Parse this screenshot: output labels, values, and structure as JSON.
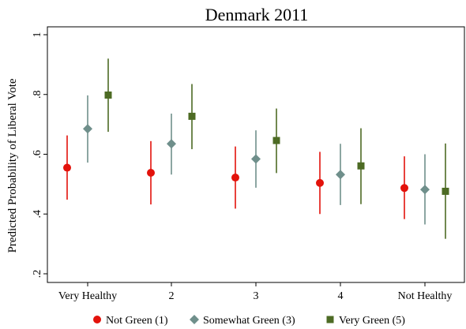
{
  "chart_data": {
    "type": "scatter",
    "title": "Denmark 2011",
    "xlabel": "",
    "ylabel": "Predicted Probability of Liberal Vote",
    "categories": [
      "Very Healthy",
      "2",
      "3",
      "4",
      "Not Healthy"
    ],
    "ylim": [
      0.2,
      1.0
    ],
    "yticks": [
      0.2,
      0.4,
      0.6,
      0.8,
      1.0
    ],
    "ytick_labels": [
      ".2",
      ".4",
      ".6",
      ".8",
      "1"
    ],
    "grid": false,
    "legend_position": "bottom",
    "series": [
      {
        "name": "Not Green (1)",
        "marker": "circle",
        "color": "#e3120b",
        "values": [
          0.555,
          0.538,
          0.522,
          0.504,
          0.487
        ],
        "ci_low": [
          0.448,
          0.432,
          0.418,
          0.4,
          0.383
        ],
        "ci_high": [
          0.663,
          0.644,
          0.626,
          0.608,
          0.593
        ]
      },
      {
        "name": "Somewhat Green (3)",
        "marker": "diamond",
        "color": "#6f8f8b",
        "values": [
          0.685,
          0.635,
          0.584,
          0.532,
          0.482
        ],
        "ci_low": [
          0.572,
          0.532,
          0.488,
          0.43,
          0.365
        ],
        "ci_high": [
          0.797,
          0.736,
          0.68,
          0.635,
          0.6
        ]
      },
      {
        "name": "Very Green (5)",
        "marker": "square",
        "color": "#4d6b24",
        "values": [
          0.798,
          0.727,
          0.646,
          0.561,
          0.476
        ],
        "ci_low": [
          0.675,
          0.617,
          0.537,
          0.433,
          0.317
        ],
        "ci_high": [
          0.92,
          0.835,
          0.753,
          0.687,
          0.636
        ]
      }
    ]
  }
}
